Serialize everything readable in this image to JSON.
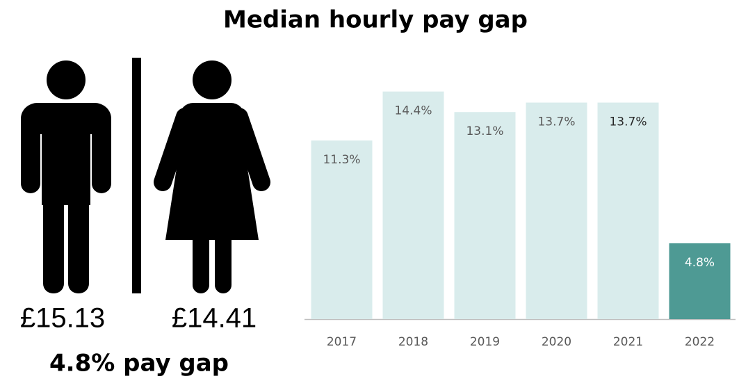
{
  "chart_data": {
    "type": "bar",
    "title": "Median hourly pay gap",
    "categories": [
      "2017",
      "2018",
      "2019",
      "2020",
      "2021",
      "2022"
    ],
    "values": [
      11.3,
      14.4,
      13.1,
      13.7,
      13.7,
      4.8
    ],
    "value_labels": [
      "11.3%",
      "14.4%",
      "13.1%",
      "13.7%",
      "13.7%",
      "4.8%"
    ],
    "colors": [
      "#d9ecec",
      "#d9ecec",
      "#d9ecec",
      "#d9ecec",
      "#d9ecec",
      "#4e9a94"
    ],
    "label_colors": [
      "#595959",
      "#595959",
      "#595959",
      "#595959",
      "#262626",
      "#ffffff"
    ],
    "ylim": [
      0,
      15
    ]
  },
  "infographic": {
    "male_pay": "£15.13",
    "female_pay": "£14.41",
    "summary": "4.8% pay gap"
  }
}
